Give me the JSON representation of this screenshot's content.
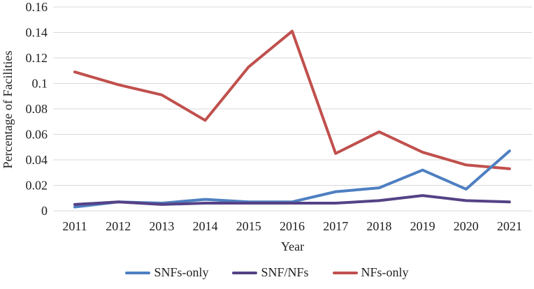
{
  "chart_data": {
    "type": "line",
    "x": [
      "2011",
      "2012",
      "2013",
      "2014",
      "2015",
      "2016",
      "2017",
      "2018",
      "2019",
      "2020",
      "2021"
    ],
    "series": [
      {
        "name": "SNFs-only",
        "color": "#4E7FC1",
        "values": [
          0.003,
          0.007,
          0.006,
          0.009,
          0.007,
          0.007,
          0.015,
          0.018,
          0.032,
          0.017,
          0.047
        ]
      },
      {
        "name": "SNF/NFs",
        "color": "#554286",
        "values": [
          0.005,
          0.007,
          0.005,
          0.006,
          0.006,
          0.006,
          0.006,
          0.008,
          0.012,
          0.008,
          0.007
        ]
      },
      {
        "name": "NFs-only",
        "color": "#C0504D",
        "values": [
          0.109,
          0.099,
          0.091,
          0.071,
          0.113,
          0.141,
          0.045,
          0.062,
          0.046,
          0.036,
          0.033
        ]
      }
    ],
    "xlabel": "Year",
    "ylabel": "Percentage of Facilities",
    "ylim": [
      0,
      0.16
    ],
    "yticks": [
      "0",
      "0.02",
      "0.04",
      "0.06",
      "0.08",
      "0.1",
      "0.12",
      "0.14",
      "0.16"
    ],
    "grid": true,
    "legend_position": "bottom",
    "gridline_color": "#D9D9D9",
    "text_color": "#1f1f1f"
  }
}
